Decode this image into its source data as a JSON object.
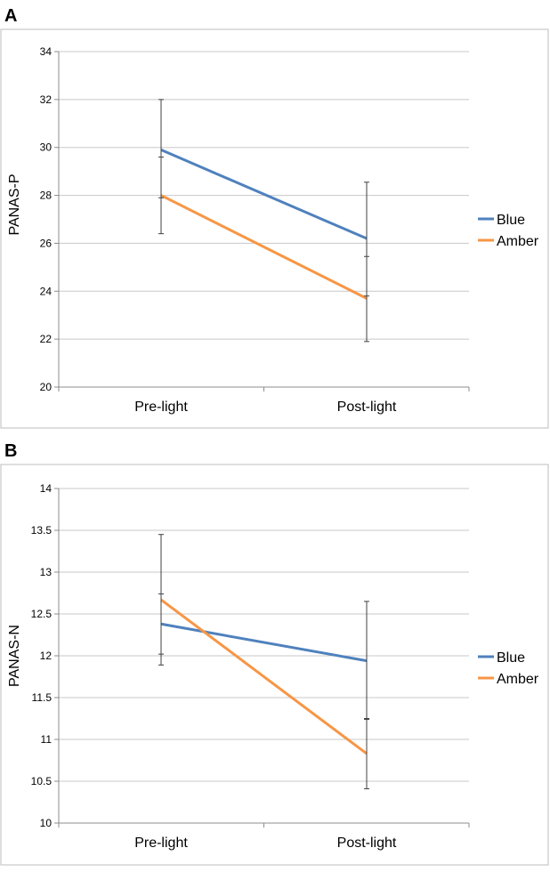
{
  "colors": {
    "blue": "#4F81BD",
    "amber": "#F79646",
    "grid": "#c8c8c8",
    "error_bar": "#404040"
  },
  "chart_data": [
    {
      "panel_label": "A",
      "type": "line",
      "categories": [
        "Pre-light",
        "Post-light"
      ],
      "ylabel": "PANAS-P",
      "xlabel": "",
      "ylim": [
        20,
        34
      ],
      "yticks": [
        20,
        22,
        24,
        26,
        28,
        30,
        32,
        34
      ],
      "ytick_labels": [
        "20",
        "22",
        "24",
        "26",
        "28",
        "30",
        "32",
        "34"
      ],
      "grid": true,
      "legend_position": "right",
      "series": [
        {
          "name": "Blue",
          "color": "#4F81BD",
          "values": [
            29.9,
            26.2
          ],
          "error_low": [
            27.9,
            23.8
          ],
          "error_high": [
            32.0,
            28.55
          ]
        },
        {
          "name": "Amber",
          "color": "#F79646",
          "values": [
            28.0,
            23.7
          ],
          "error_low": [
            26.4,
            21.9
          ],
          "error_high": [
            29.6,
            25.45
          ]
        }
      ]
    },
    {
      "panel_label": "B",
      "type": "line",
      "categories": [
        "Pre-light",
        "Post-light"
      ],
      "ylabel": "PANAS-N",
      "xlabel": "",
      "ylim": [
        10,
        14
      ],
      "yticks": [
        10,
        10.5,
        11,
        11.5,
        12,
        12.5,
        13,
        13.5,
        14
      ],
      "ytick_labels": [
        "10",
        "10.5",
        "11",
        "11.5",
        "12",
        "12.5",
        "13",
        "13.5",
        "14"
      ],
      "grid": true,
      "legend_position": "right",
      "series": [
        {
          "name": "Blue",
          "color": "#4F81BD",
          "values": [
            12.38,
            11.94
          ],
          "error_low": [
            12.02,
            11.24
          ],
          "error_high": [
            12.74,
            12.65
          ]
        },
        {
          "name": "Amber",
          "color": "#F79646",
          "values": [
            12.67,
            10.83
          ],
          "error_low": [
            11.89,
            10.41
          ],
          "error_high": [
            13.45,
            11.25
          ]
        }
      ]
    }
  ]
}
